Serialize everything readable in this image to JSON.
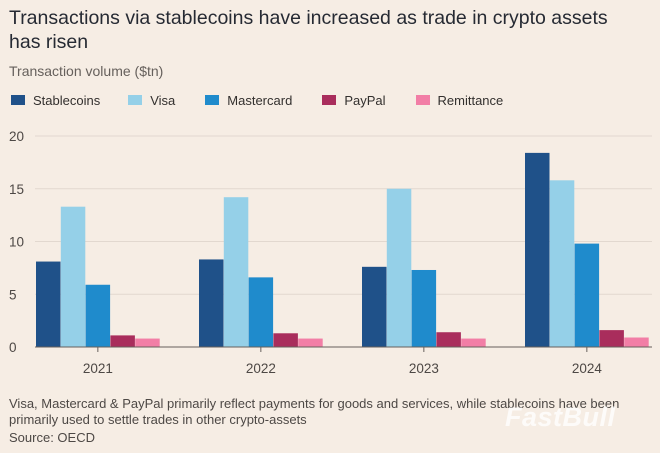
{
  "title": "Transactions via stablecoins have increased as trade in crypto assets has risen",
  "watermark": "FastBull",
  "chart_data": {
    "type": "bar",
    "ylabel": "Transaction volume ($tn)",
    "xlabel": "",
    "ylim": [
      0,
      20
    ],
    "yticks": [
      "0",
      "5",
      "10",
      "15",
      "20"
    ],
    "grid": true,
    "legend_position": "top",
    "categories": [
      "2021",
      "2022",
      "2023",
      "2024"
    ],
    "series": [
      {
        "name": "Stablecoins",
        "color": "#1f5189",
        "values": [
          8.1,
          8.3,
          7.6,
          18.4
        ]
      },
      {
        "name": "Visa",
        "color": "#95d0e8",
        "values": [
          13.3,
          14.2,
          15.0,
          15.8
        ]
      },
      {
        "name": "Mastercard",
        "color": "#1f8bcc",
        "values": [
          5.9,
          6.6,
          7.3,
          9.8
        ]
      },
      {
        "name": "PayPal",
        "color": "#a92d5c",
        "values": [
          1.1,
          1.3,
          1.4,
          1.6
        ]
      },
      {
        "name": "Remittance",
        "color": "#f27ea6",
        "values": [
          0.8,
          0.8,
          0.8,
          0.9
        ]
      }
    ]
  },
  "footnote": "Visa, Mastercard & PayPal primarily reflect payments for goods and services, while stablecoins have been primarily used to settle trades in other crypto-assets",
  "source": "Source: OECD"
}
